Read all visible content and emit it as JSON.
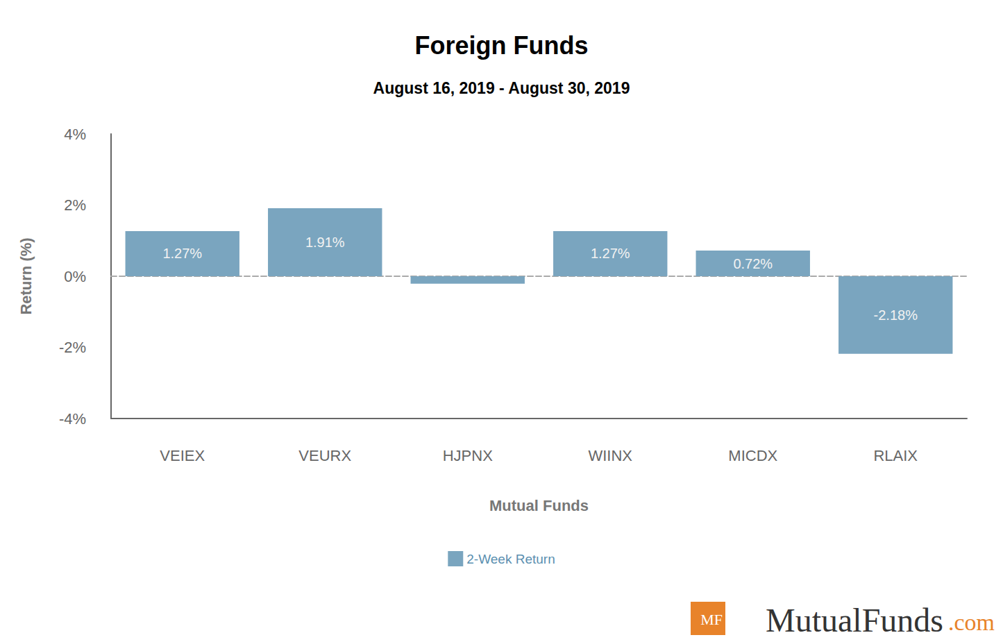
{
  "chart_data": {
    "type": "bar",
    "title": "Foreign Funds",
    "subtitle": "August 16, 2019 - August 30, 2019",
    "x_label": "Mutual Funds",
    "y_label": "Return (%)",
    "categories": [
      "VEIEX",
      "VEURX",
      "HJPNX",
      "WIINX",
      "MICDX",
      "RLAIX"
    ],
    "series": [
      {
        "name": "2-Week Return",
        "color": "#7aa5bf",
        "values": [
          1.27,
          1.91,
          -0.21,
          1.27,
          0.72,
          -2.18
        ],
        "value_labels": [
          "1.27%",
          "1.91%",
          null,
          "1.27%",
          "0.72%",
          "-2.18%"
        ]
      }
    ],
    "ylim": [
      -4,
      4
    ],
    "yticks": [
      {
        "value": -4,
        "label": "-4%"
      },
      {
        "value": -2,
        "label": "-2%"
      },
      {
        "value": 0,
        "label": "0%"
      },
      {
        "value": 2,
        "label": "2%"
      },
      {
        "value": 4,
        "label": "4%"
      }
    ],
    "grid": false,
    "legend": "bottom",
    "data_labels": true,
    "logo_mark": "MF",
    "logo_text": "MutualFunds",
    "logo_suffix": ".com"
  }
}
